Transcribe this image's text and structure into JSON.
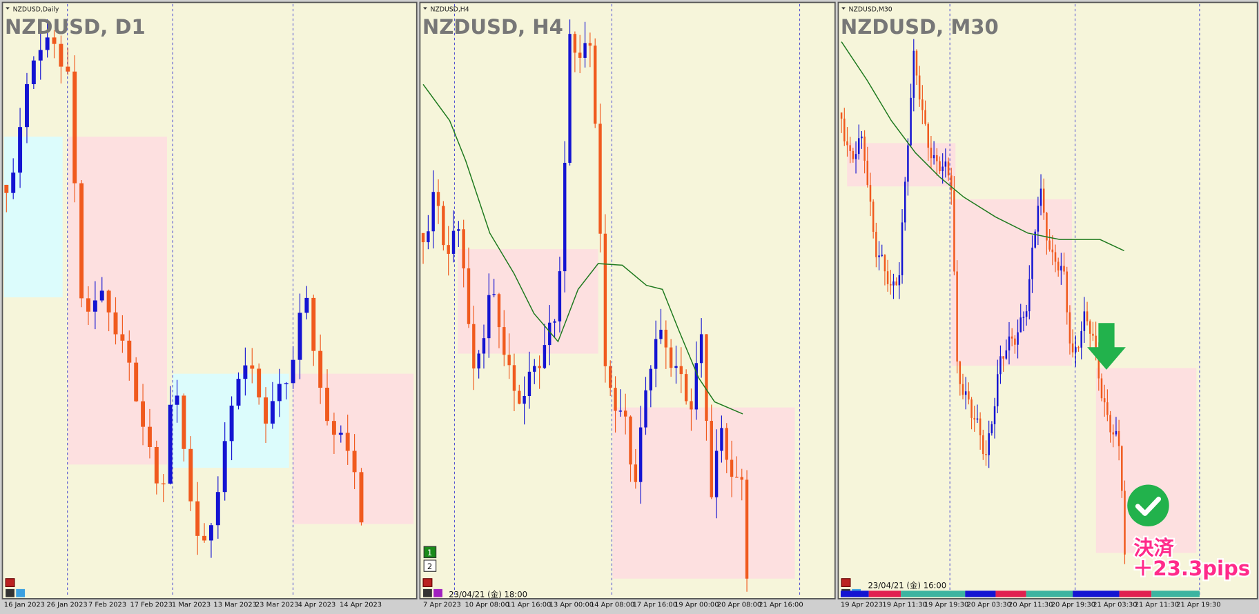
{
  "panels": [
    {
      "header": "NZDUSD,Daily",
      "title": "NZDUSD, D1",
      "x_labels": [
        "16 Jan 2023",
        "26 Jan 2023",
        "7 Feb 2023",
        "17 Feb 2023",
        "1 Mar 2023",
        "13 Mar 2023",
        "23 Mar 2023",
        "4 Apr 2023",
        "14 Apr 2023"
      ]
    },
    {
      "header": "NZDUSD,H4",
      "title": "NZDUSD, H4",
      "timestamp": "23/04/21 (金) 18:00",
      "buttons": [
        "1",
        "2"
      ],
      "x_labels": [
        "7 Apr 2023",
        "10 Apr 08:00",
        "11 Apr 16:00",
        "13 Apr 00:00",
        "14 Apr 08:00",
        "17 Apr 16:00",
        "19 Apr 00:00",
        "20 Apr 08:00",
        "21 Apr 16:00"
      ]
    },
    {
      "header": "NZDUSD,M30",
      "title": "NZDUSD, M30",
      "timestamp": "23/04/21 (金) 16:00",
      "x_labels": [
        "19 Apr 2023",
        "19 Apr 11:30",
        "19 Apr 19:30",
        "20 Apr 03:30",
        "20 Apr 11:30",
        "20 Apr 19:30",
        "21 Apr 03:30",
        "21 Apr 11:30",
        "21 Apr 19:30"
      ]
    }
  ],
  "annotation": {
    "line1": "決済",
    "line2": "＋23.3pips"
  }
}
